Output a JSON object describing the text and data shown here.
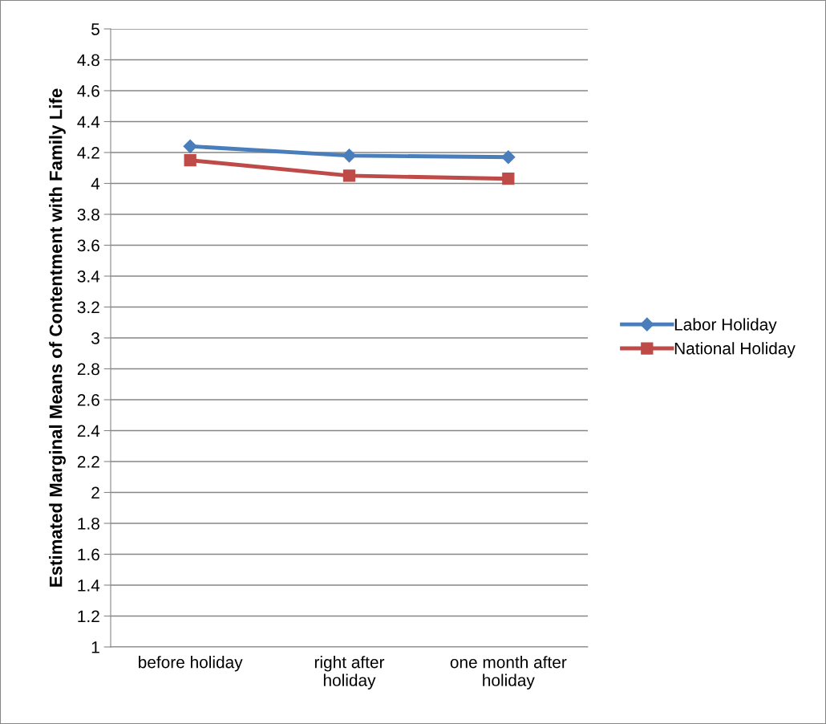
{
  "chart_data": {
    "type": "line",
    "ylabel": "Estimated Marginal Means of Contentment with Family Life",
    "categories": [
      "before holiday",
      "right after holiday",
      "one month after holiday"
    ],
    "series": [
      {
        "name": "Labor Holiday",
        "color": "#4a7ebb",
        "marker": "diamond",
        "values": [
          4.24,
          4.18,
          4.17
        ]
      },
      {
        "name": "National Holiday",
        "color": "#be4b48",
        "marker": "square",
        "values": [
          4.15,
          4.05,
          4.03
        ]
      }
    ],
    "ylim": [
      1,
      5
    ],
    "yticks": [
      1,
      1.2,
      1.4,
      1.6,
      1.8,
      2,
      2.2,
      2.4,
      2.6,
      2.8,
      3,
      3.2,
      3.4,
      3.6,
      3.8,
      4,
      4.2,
      4.4,
      4.6,
      4.8,
      5
    ],
    "grid": "y",
    "legend": "right"
  }
}
